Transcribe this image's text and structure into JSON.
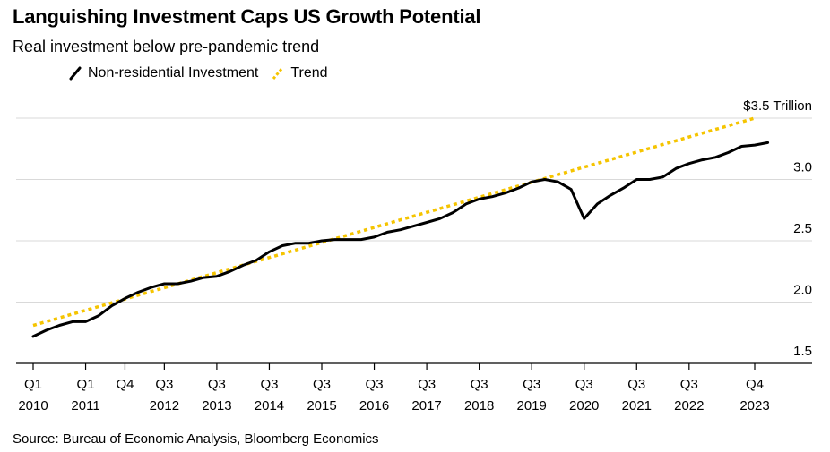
{
  "title": "Languishing Investment Caps US Growth Potential",
  "subtitle": "Real investment below pre-pandemic trend",
  "source": "Source: Bureau of Economic Analysis, Bloomberg Economics",
  "colors": {
    "investment": "#000000",
    "trend": "#f5c400",
    "grid": "#d9d9d9"
  },
  "chart_data": {
    "type": "line",
    "title": "Languishing Investment Caps US Growth Potential",
    "subtitle": "Real investment below pre-pandemic trend",
    "ylabel": "",
    "ylim": [
      1.5,
      3.5
    ],
    "y_ticks": [
      {
        "value": 1.5,
        "label": "1.5"
      },
      {
        "value": 2.0,
        "label": "2.0"
      },
      {
        "value": 2.5,
        "label": "2.5"
      },
      {
        "value": 3.0,
        "label": "3.0"
      },
      {
        "value": 3.5,
        "label": "$3.5 Trillion"
      }
    ],
    "x_ticks": [
      {
        "q": 0,
        "top": "Q1",
        "bottom": "2010"
      },
      {
        "q": 4,
        "top": "Q1",
        "bottom": "2011"
      },
      {
        "q": 7,
        "top": "Q4",
        "bottom": ""
      },
      {
        "q": 10,
        "top": "Q3",
        "bottom": "2012"
      },
      {
        "q": 14,
        "top": "Q3",
        "bottom": "2013"
      },
      {
        "q": 18,
        "top": "Q3",
        "bottom": "2014"
      },
      {
        "q": 22,
        "top": "Q3",
        "bottom": "2015"
      },
      {
        "q": 26,
        "top": "Q3",
        "bottom": "2016"
      },
      {
        "q": 30,
        "top": "Q3",
        "bottom": "2017"
      },
      {
        "q": 34,
        "top": "Q3",
        "bottom": "2018"
      },
      {
        "q": 38,
        "top": "Q3",
        "bottom": "2019"
      },
      {
        "q": 42,
        "top": "Q3",
        "bottom": "2020"
      },
      {
        "q": 46,
        "top": "Q3",
        "bottom": "2021"
      },
      {
        "q": 50,
        "top": "Q3",
        "bottom": "2022"
      },
      {
        "q": 55,
        "top": "Q4",
        "bottom": "2023"
      }
    ],
    "series": [
      {
        "name": "Non-residential Investment",
        "color": "#000000",
        "style": "solid",
        "values": [
          1.72,
          1.77,
          1.81,
          1.84,
          1.84,
          1.89,
          1.97,
          2.03,
          2.08,
          2.12,
          2.15,
          2.15,
          2.17,
          2.2,
          2.21,
          2.25,
          2.3,
          2.34,
          2.41,
          2.46,
          2.48,
          2.48,
          2.5,
          2.51,
          2.51,
          2.51,
          2.53,
          2.57,
          2.59,
          2.62,
          2.65,
          2.68,
          2.73,
          2.8,
          2.84,
          2.86,
          2.89,
          2.93,
          2.98,
          3.0,
          2.98,
          2.92,
          2.68,
          2.8,
          2.87,
          2.93,
          3.0,
          3.0,
          3.02,
          3.09,
          3.13,
          3.16,
          3.18,
          3.22,
          3.27,
          3.28,
          3.3
        ]
      },
      {
        "name": "Trend",
        "color": "#f5c400",
        "style": "dotted",
        "start": {
          "q": 0,
          "value": 1.81
        },
        "end": {
          "q": 55,
          "value": 3.5
        }
      }
    ],
    "legend": "top-left",
    "grid": true
  }
}
